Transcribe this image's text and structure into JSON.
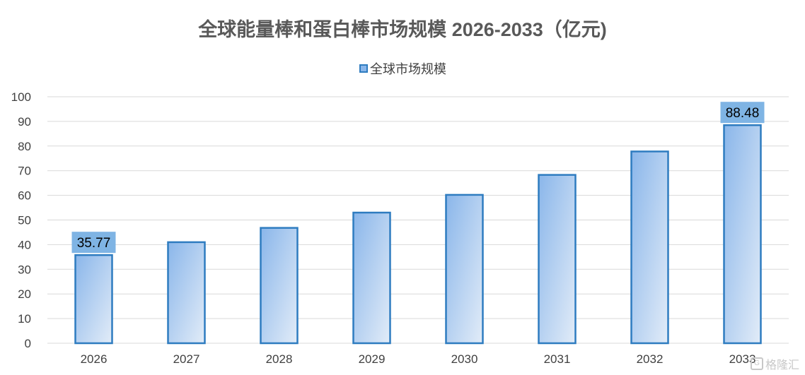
{
  "chart_data": {
    "type": "bar",
    "title": "全球能量棒和蛋白棒市场规模 2026-2033（亿元)",
    "categories": [
      "2026",
      "2027",
      "2028",
      "2029",
      "2030",
      "2031",
      "2032",
      "2033"
    ],
    "series": [
      {
        "name": "全球市场规模",
        "values": [
          35.77,
          41,
          46.8,
          53,
          60.2,
          68.3,
          77.8,
          88.48
        ]
      }
    ],
    "data_labels": [
      {
        "index": 0,
        "text": "35.77"
      },
      {
        "index": 7,
        "text": "88.48"
      }
    ],
    "ylim": [
      0,
      100
    ],
    "yticks": [
      "0",
      "10",
      "20",
      "30",
      "40",
      "50",
      "60",
      "70",
      "80",
      "90",
      "100"
    ],
    "grid": true,
    "legend_position": "top-center",
    "colors": {
      "bar_top": "#8ab6ea",
      "bar_bottom": "#e2ecf8",
      "bar_border": "#2e7cc0",
      "label_bg": "#7fb4e4",
      "grid": "#d9d9d9"
    }
  },
  "watermark": {
    "text": "格隆汇",
    "logo": "G"
  }
}
